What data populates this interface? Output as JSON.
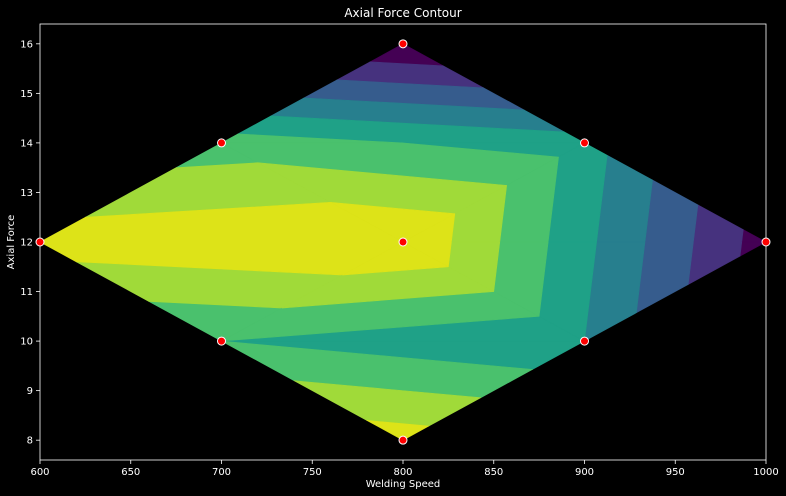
{
  "chart_data": {
    "type": "contour",
    "title": "Axial Force Contour",
    "xlabel": "Welding Speed",
    "ylabel": "Axial Force",
    "xlim": [
      600,
      1000
    ],
    "ylim": [
      7.6,
      16.4
    ],
    "xticks": [
      600,
      650,
      700,
      750,
      800,
      850,
      900,
      950,
      1000
    ],
    "yticks": [
      8,
      9,
      10,
      11,
      12,
      13,
      14,
      15,
      16
    ],
    "grid": false,
    "colormap": "viridis",
    "levels": [
      1,
      2,
      3,
      4,
      5,
      6,
      7,
      8
    ],
    "level_colors": [
      "#440154",
      "#46327e",
      "#365c8d",
      "#277f8e",
      "#1fa187",
      "#4ac16d",
      "#a0da39",
      "#dde318"
    ],
    "design_points": [
      {
        "x": 800,
        "y": 16,
        "z": 1.0
      },
      {
        "x": 700,
        "y": 14,
        "z": 6.5
      },
      {
        "x": 900,
        "y": 14,
        "z": 5.5
      },
      {
        "x": 600,
        "y": 12,
        "z": 8.5
      },
      {
        "x": 800,
        "y": 12,
        "z": 9.0
      },
      {
        "x": 1000,
        "y": 12,
        "z": 1.5
      },
      {
        "x": 700,
        "y": 10,
        "z": 6.0
      },
      {
        "x": 900,
        "y": 10,
        "z": 5.0
      },
      {
        "x": 800,
        "y": 8,
        "z": 8.5
      }
    ],
    "marker_color": "#ff0000",
    "marker_edge": "#ffffff"
  }
}
